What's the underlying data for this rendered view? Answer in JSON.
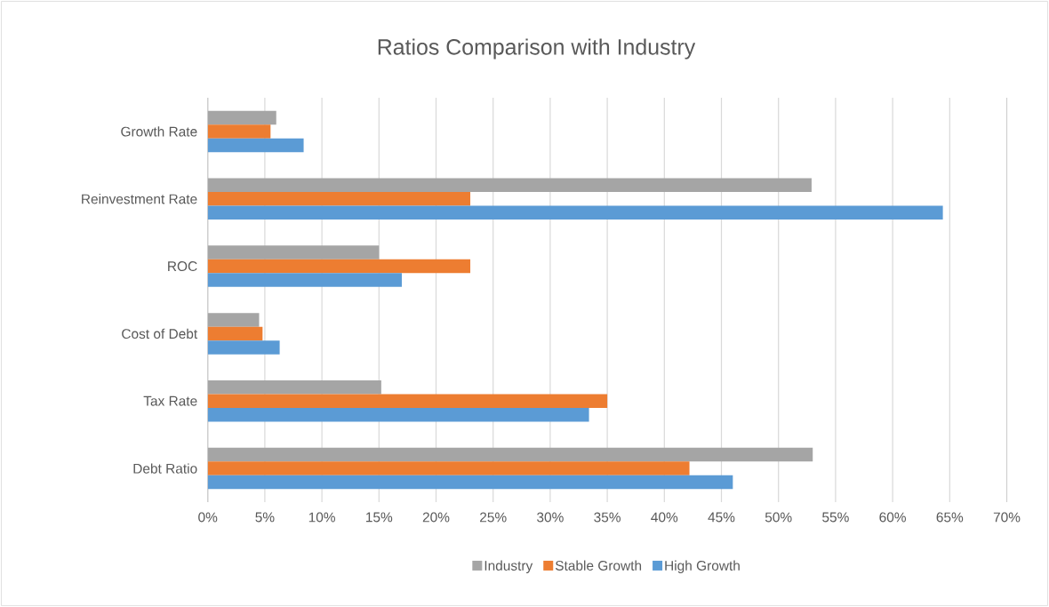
{
  "chart_data": {
    "type": "bar",
    "orientation": "horizontal",
    "title": "Ratios Comparison with Industry",
    "categories": [
      "Growth Rate",
      "Reinvestment Rate",
      "ROC",
      "Cost of Debt",
      "Tax Rate",
      "Debt Ratio"
    ],
    "series": [
      {
        "name": "Industry",
        "color": "#a5a5a5",
        "values": [
          6.0,
          52.9,
          15.0,
          4.5,
          15.2,
          53.0
        ]
      },
      {
        "name": "Stable Growth",
        "color": "#ed7d31",
        "values": [
          5.5,
          23.0,
          23.0,
          4.8,
          35.0,
          42.2
        ]
      },
      {
        "name": "High Growth",
        "color": "#5b9bd5",
        "values": [
          8.4,
          64.4,
          17.0,
          6.3,
          33.4,
          46.0
        ]
      }
    ],
    "xlim": [
      0,
      70
    ],
    "xticks": [
      {
        "value": 0,
        "label": "0%"
      },
      {
        "value": 5,
        "label": "5%"
      },
      {
        "value": 10,
        "label": "10%"
      },
      {
        "value": 15,
        "label": "15%"
      },
      {
        "value": 20,
        "label": "20%"
      },
      {
        "value": 25,
        "label": "25%"
      },
      {
        "value": 30,
        "label": "30%"
      },
      {
        "value": 35,
        "label": "35%"
      },
      {
        "value": 40,
        "label": "40%"
      },
      {
        "value": 45,
        "label": "45%"
      },
      {
        "value": 50,
        "label": "50%"
      },
      {
        "value": 55,
        "label": "55%"
      },
      {
        "value": 60,
        "label": "60%"
      },
      {
        "value": 65,
        "label": "65%"
      },
      {
        "value": 70,
        "label": "70%"
      }
    ],
    "grid": "x",
    "legend": "bottom"
  }
}
